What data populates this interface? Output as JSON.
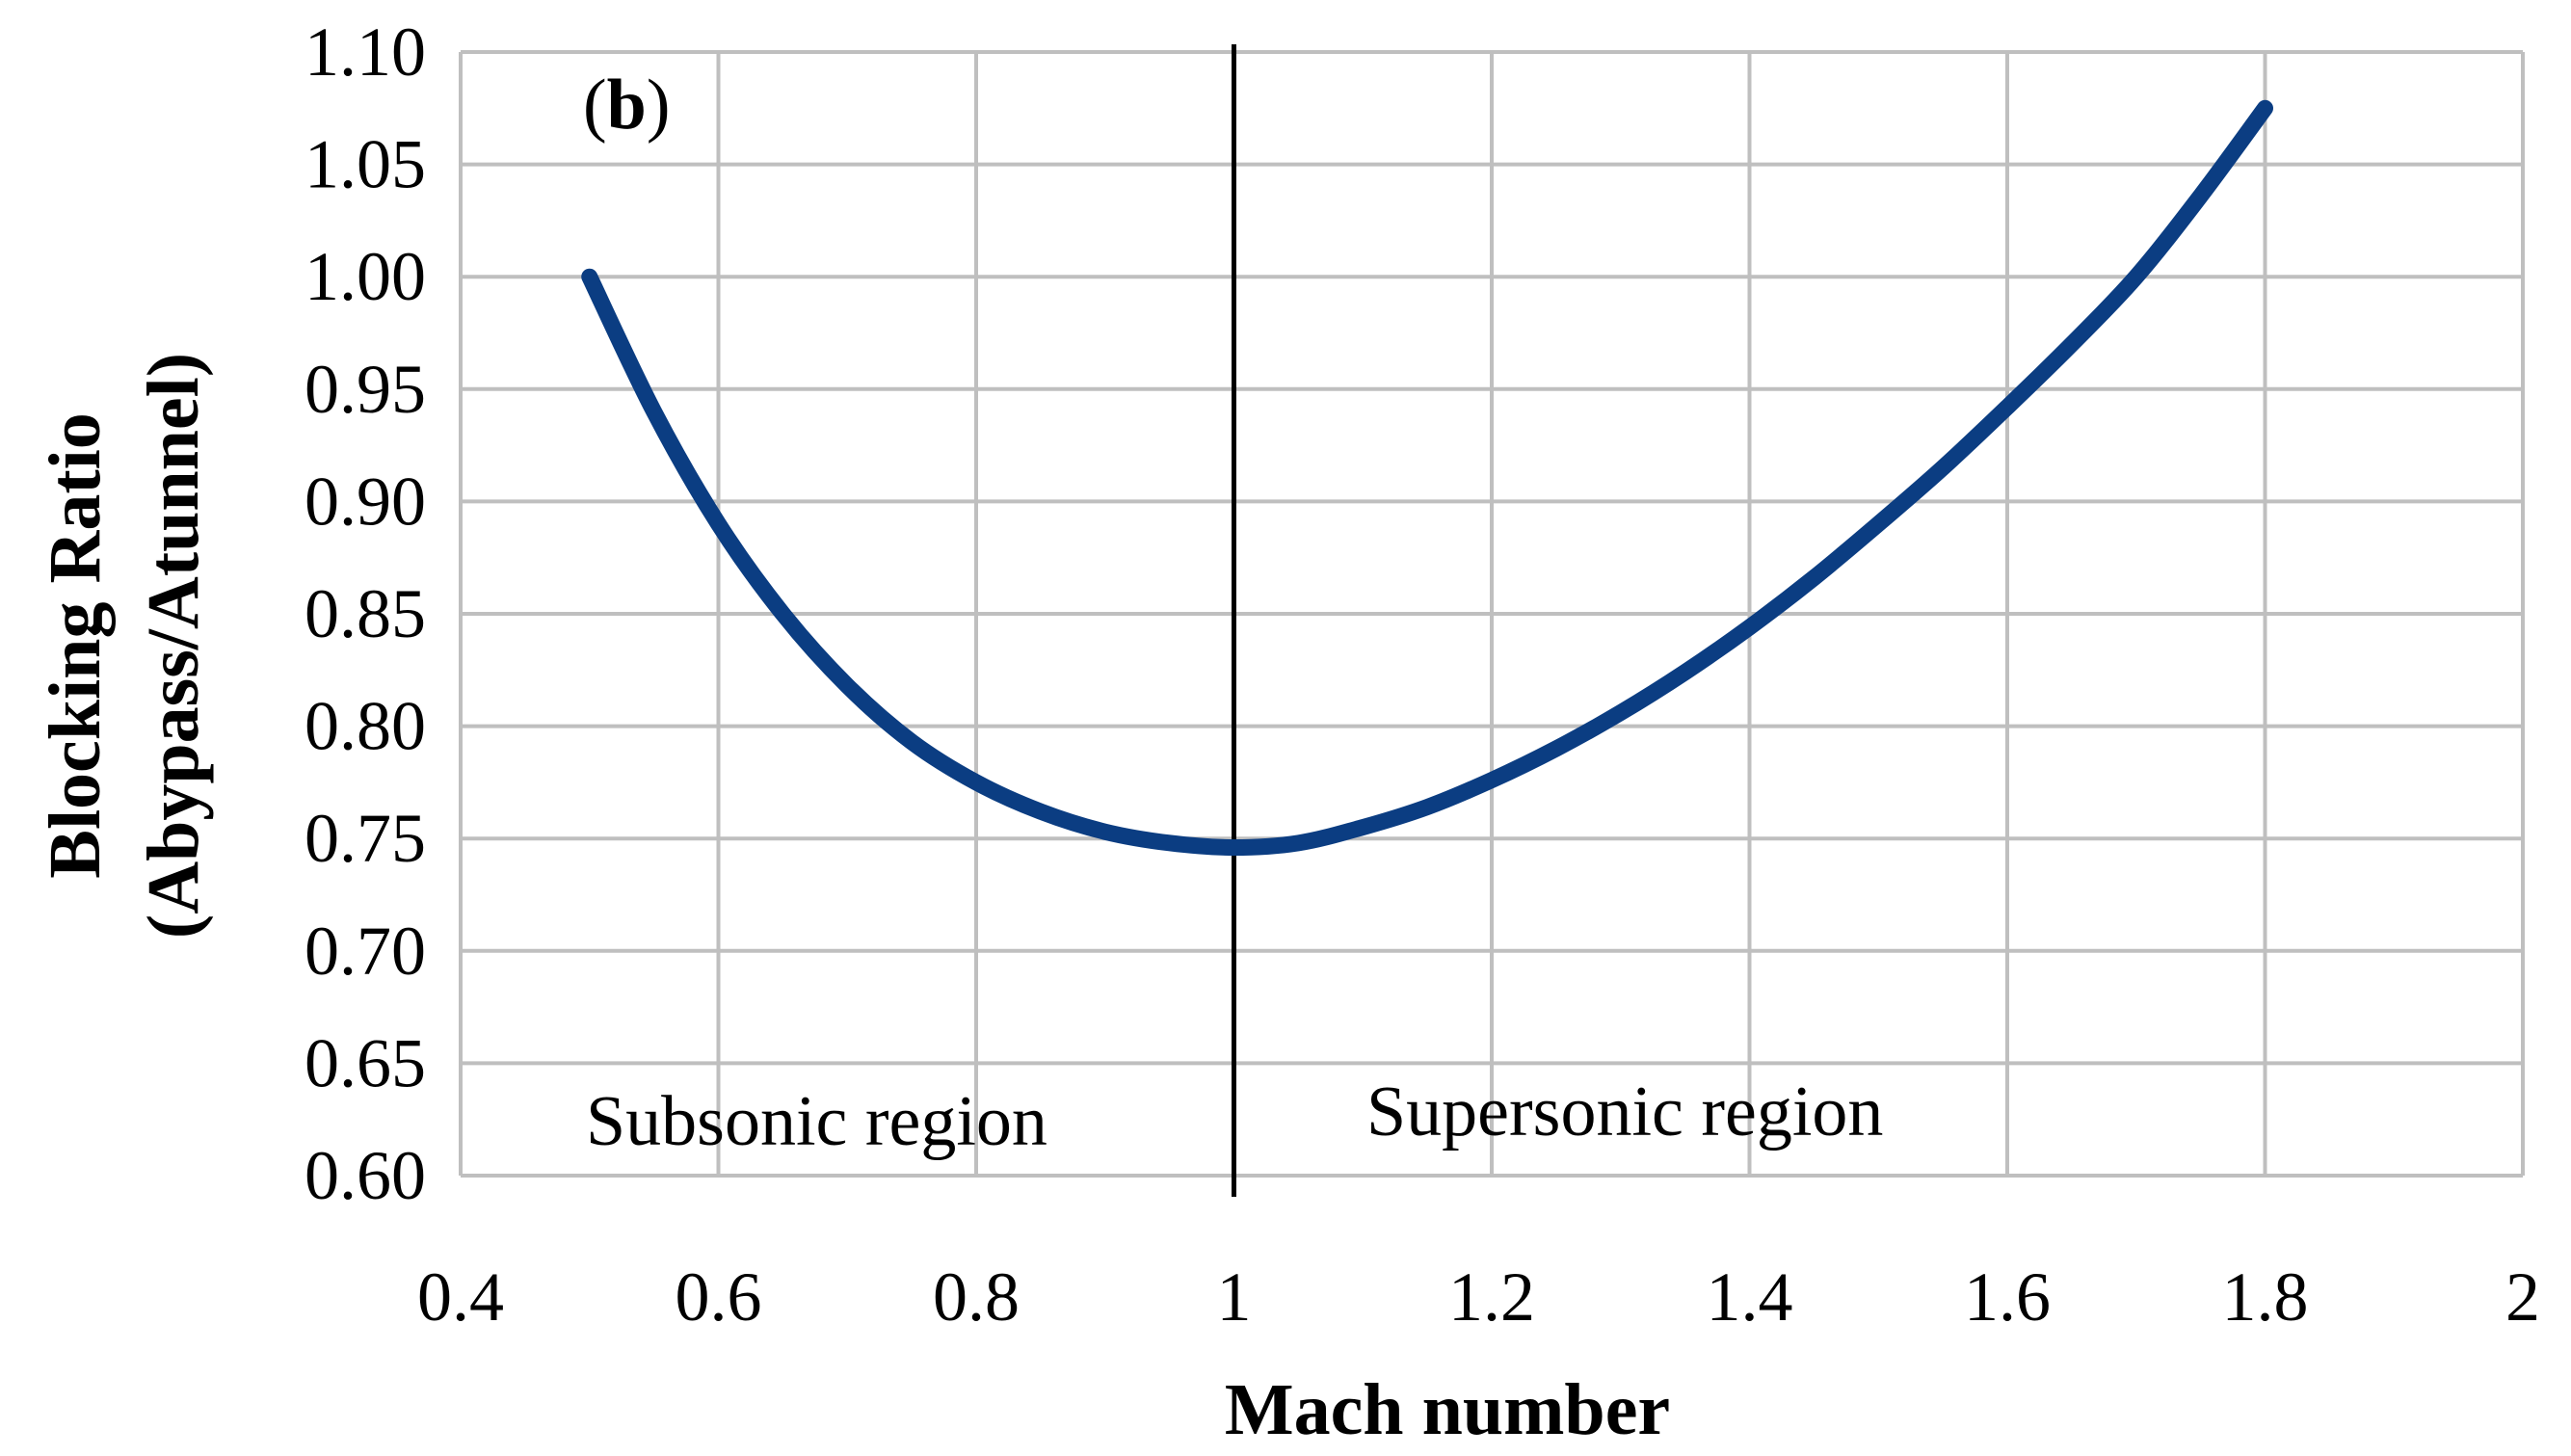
{
  "chart_data": {
    "type": "line",
    "title": "",
    "panel_label": {
      "open": "(",
      "letter": "b",
      "close": ")"
    },
    "xlabel": "Mach number",
    "ylabel": [
      "Blocking Ratio",
      "(Abypass/Atunnel)"
    ],
    "xlim": [
      0.4,
      2
    ],
    "ylim": [
      0.6,
      1.1
    ],
    "x_ticks": [
      "0.4",
      "0.6",
      "0.8",
      "1",
      "1.2",
      "1.4",
      "1.6",
      "1.8",
      "2"
    ],
    "y_ticks": [
      "0.60",
      "0.65",
      "0.70",
      "0.75",
      "0.80",
      "0.85",
      "0.90",
      "0.95",
      "1.00",
      "1.05",
      "1.10"
    ],
    "grid": true,
    "reference_line": {
      "x": 1,
      "color": "#000000"
    },
    "annotations": [
      "Subsonic region",
      "Supersonic region"
    ],
    "series": [
      {
        "color": "#0b3d82",
        "x": [
          0.5,
          0.55,
          0.6,
          0.65,
          0.7,
          0.75,
          0.8,
          0.85,
          0.9,
          0.95,
          1.0,
          1.05,
          1.1,
          1.15,
          1.2,
          1.25,
          1.3,
          1.35,
          1.4,
          1.45,
          1.5,
          1.55,
          1.6,
          1.65,
          1.7,
          1.75,
          1.8
        ],
        "y": [
          1.0,
          0.94,
          0.89,
          0.85,
          0.818,
          0.793,
          0.775,
          0.762,
          0.753,
          0.748,
          0.746,
          0.748,
          0.755,
          0.764,
          0.776,
          0.79,
          0.806,
          0.824,
          0.844,
          0.866,
          0.89,
          0.915,
          0.942,
          0.97,
          1.0,
          1.036,
          1.075
        ]
      }
    ]
  }
}
